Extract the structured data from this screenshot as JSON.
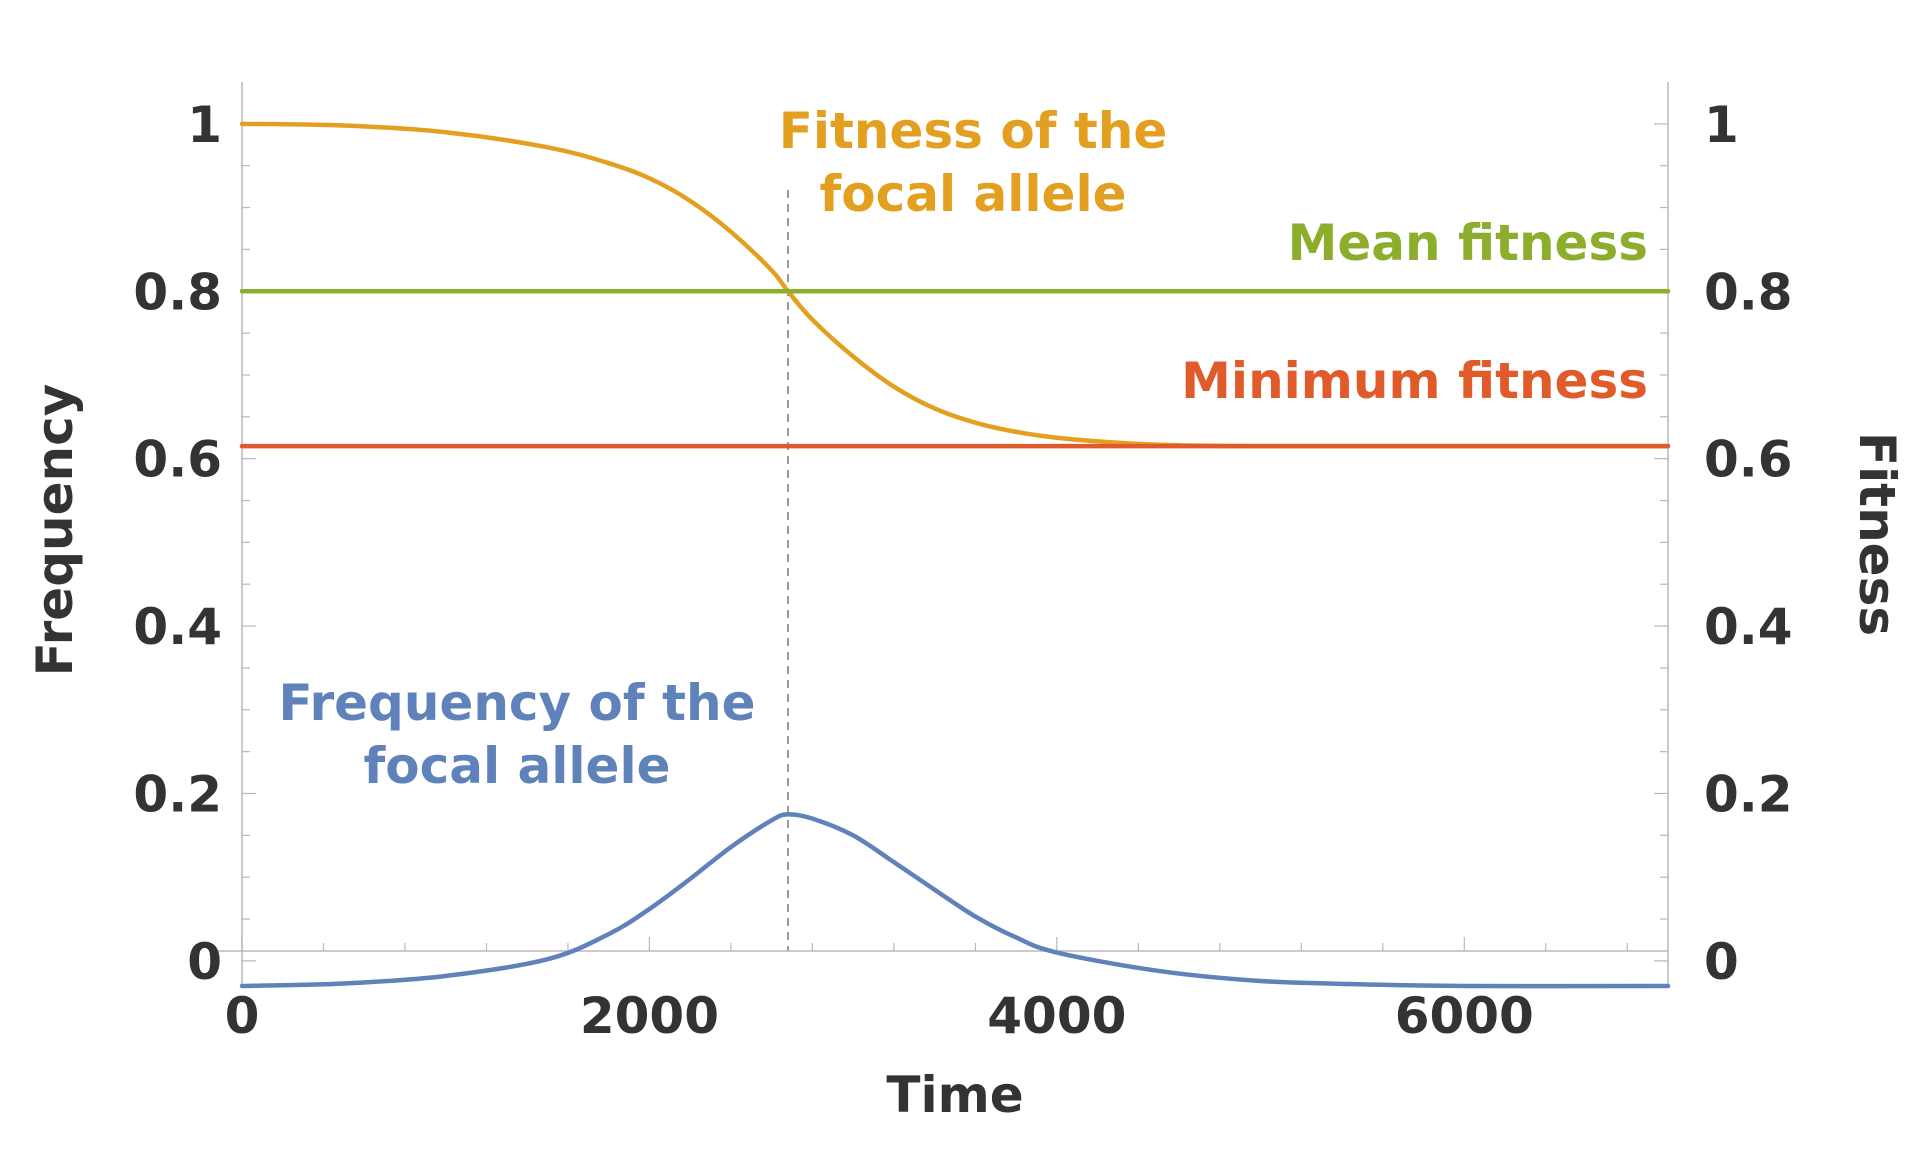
{
  "chart_data": {
    "type": "line",
    "xlabel": "Time",
    "ylabel_left": "Frequency",
    "ylabel_right": "Fitness",
    "xlim": [
      0,
      7000
    ],
    "ylim": [
      -0.03,
      1.05
    ],
    "x_ticks": [
      {
        "value": 0,
        "label": "0"
      },
      {
        "value": 2000,
        "label": "2000"
      },
      {
        "value": 4000,
        "label": "4000"
      },
      {
        "value": 6000,
        "label": "6000"
      }
    ],
    "y_ticks_left": [
      {
        "value": 0,
        "label": "0"
      },
      {
        "value": 0.2,
        "label": "0.2"
      },
      {
        "value": 0.4,
        "label": "0.4"
      },
      {
        "value": 0.6,
        "label": "0.6"
      },
      {
        "value": 0.8,
        "label": "0.8"
      },
      {
        "value": 1,
        "label": "1"
      }
    ],
    "y_ticks_right": [
      {
        "value": 0,
        "label": "0"
      },
      {
        "value": 0.2,
        "label": "0.2"
      },
      {
        "value": 0.4,
        "label": "0.4"
      },
      {
        "value": 0.6,
        "label": "0.6"
      },
      {
        "value": 0.8,
        "label": "0.8"
      },
      {
        "value": 1,
        "label": "1"
      }
    ],
    "reference_line": {
      "x": 2680,
      "style": "dashed"
    },
    "series": [
      {
        "key": "fitness-focal",
        "label_lines": [
          "Fitness of the",
          "focal allele"
        ],
        "color": "#E3A020",
        "x": [
          0,
          500,
          1000,
          1500,
          1800,
          2000,
          2200,
          2400,
          2600,
          2680,
          2800,
          3000,
          3200,
          3400,
          3600,
          3800,
          4000,
          4300,
          4600,
          5000,
          5500,
          6000,
          7000
        ],
        "y": [
          1.0,
          0.998,
          0.99,
          0.972,
          0.953,
          0.935,
          0.908,
          0.871,
          0.825,
          0.8,
          0.766,
          0.722,
          0.686,
          0.66,
          0.643,
          0.632,
          0.625,
          0.619,
          0.616,
          0.615,
          0.615,
          0.615,
          0.615
        ]
      },
      {
        "key": "mean-fitness",
        "label_lines": [
          "Mean fitness"
        ],
        "color": "#8DAE2D",
        "x": [
          0,
          7000
        ],
        "y": [
          0.8,
          0.8
        ]
      },
      {
        "key": "minimum-fitness",
        "label_lines": [
          "Minimum fitness"
        ],
        "color": "#E05A2A",
        "x": [
          0,
          7000
        ],
        "y": [
          0.615,
          0.615
        ]
      },
      {
        "key": "frequency-focal",
        "label_lines": [
          "Frequency of the",
          "focal allele"
        ],
        "color": "#5F82BA",
        "x": [
          0,
          500,
          1000,
          1500,
          1800,
          2000,
          2200,
          2400,
          2600,
          2680,
          2800,
          3000,
          3200,
          3400,
          3600,
          3800,
          4000,
          4500,
          5000,
          5500,
          6000,
          7000
        ],
        "y": [
          -0.03,
          -0.027,
          -0.018,
          0.002,
          0.032,
          0.062,
          0.098,
          0.136,
          0.168,
          0.175,
          0.17,
          0.15,
          0.118,
          0.085,
          0.053,
          0.028,
          0.01,
          -0.012,
          -0.024,
          -0.028,
          -0.03,
          -0.03
        ]
      }
    ]
  }
}
